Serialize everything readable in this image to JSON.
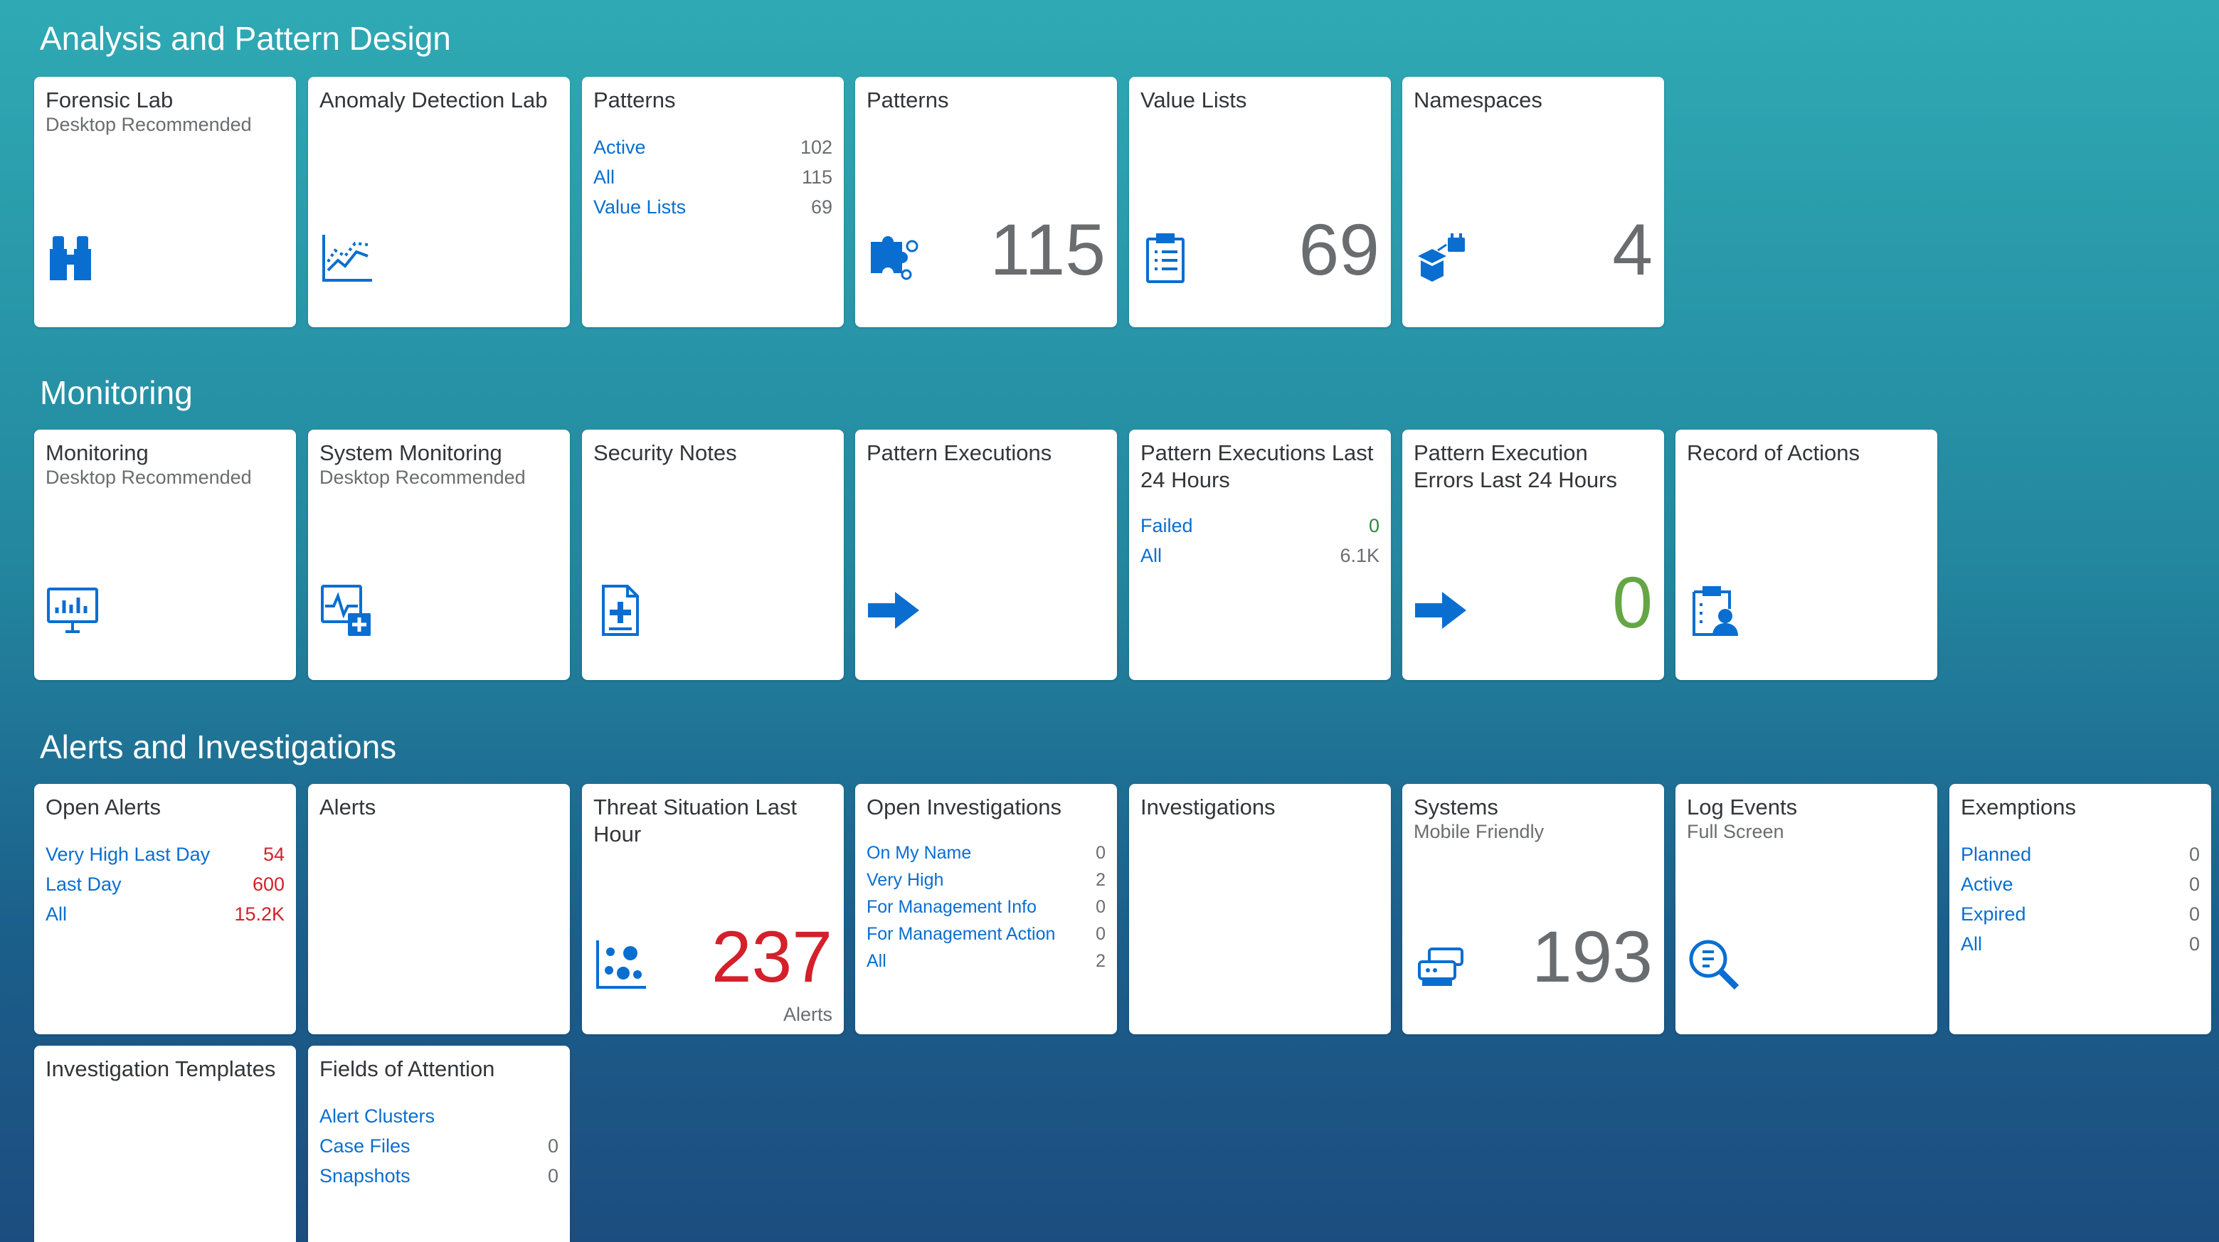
{
  "sections": {
    "analysis": "Analysis and Pattern Design",
    "monitoring": "Monitoring",
    "alerts": "Alerts and Investigations"
  },
  "tiles": {
    "forensic_lab": {
      "title": "Forensic Lab",
      "subtitle": "Desktop Recommended",
      "icon": "binoculars-icon"
    },
    "anomaly_lab": {
      "title": "Anomaly Detection Lab",
      "icon": "line-chart-icon"
    },
    "patterns_list": {
      "title": "Patterns",
      "items": [
        {
          "label": "Active",
          "value": "102"
        },
        {
          "label": "All",
          "value": "115"
        },
        {
          "label": "Value Lists",
          "value": "69"
        }
      ]
    },
    "patterns_kpi": {
      "title": "Patterns",
      "value": "115",
      "icon": "puzzle-icon"
    },
    "value_lists": {
      "title": "Value Lists",
      "value": "69",
      "icon": "clipboard-list-icon"
    },
    "namespaces": {
      "title": "Namespaces",
      "value": "4",
      "icon": "box-icon"
    },
    "monitoring": {
      "title": "Monitoring",
      "subtitle": "Desktop Recommended",
      "icon": "monitor-chart-icon"
    },
    "system_monitoring": {
      "title": "System Monitoring",
      "subtitle": "Desktop Recommended",
      "icon": "health-monitor-icon"
    },
    "security_notes": {
      "title": "Security Notes",
      "icon": "medical-document-icon"
    },
    "pattern_executions": {
      "title": "Pattern Executions",
      "icon": "arrow-right-icon"
    },
    "pattern_exec_24h": {
      "title": "Pattern Executions Last 24 Hours",
      "items": [
        {
          "label": "Failed",
          "value": "0"
        },
        {
          "label": "All",
          "value": "6.1K"
        }
      ]
    },
    "pattern_errors_24h": {
      "title": "Pattern Execution Errors Last 24 Hours",
      "value": "0",
      "icon": "arrow-right-icon"
    },
    "record_actions": {
      "title": "Record of Actions",
      "icon": "clipboard-person-icon"
    },
    "open_alerts": {
      "title": "Open Alerts",
      "items": [
        {
          "label": "Very High Last Day",
          "value": "54"
        },
        {
          "label": "Last Day",
          "value": "600"
        },
        {
          "label": "All",
          "value": "15.2K"
        }
      ]
    },
    "alerts": {
      "title": "Alerts"
    },
    "threat_situation": {
      "title": "Threat Situation Last Hour",
      "value": "237",
      "unit": "Alerts",
      "icon": "scatter-chart-icon"
    },
    "open_investigations": {
      "title": "Open Investigations",
      "items": [
        {
          "label": "On My Name",
          "value": "0"
        },
        {
          "label": "Very High",
          "value": "2"
        },
        {
          "label": "For Management Info",
          "value": "0"
        },
        {
          "label": "For Management Action",
          "value": "0"
        },
        {
          "label": "All",
          "value": "2"
        }
      ]
    },
    "investigations": {
      "title": "Investigations"
    },
    "systems": {
      "title": "Systems",
      "subtitle": "Mobile Friendly",
      "value": "193",
      "icon": "server-icon"
    },
    "log_events": {
      "title": "Log Events",
      "subtitle": "Full Screen",
      "icon": "search-document-icon"
    },
    "exemptions": {
      "title": "Exemptions",
      "items": [
        {
          "label": "Planned",
          "value": "0"
        },
        {
          "label": "Active",
          "value": "0"
        },
        {
          "label": "Expired",
          "value": "0"
        },
        {
          "label": "All",
          "value": "0"
        }
      ]
    },
    "investigation_templates": {
      "title": "Investigation Templates"
    },
    "fields_attention": {
      "title": "Fields of Attention",
      "items": [
        {
          "label": "Alert Clusters",
          "value": ""
        },
        {
          "label": "Case Files",
          "value": "0"
        },
        {
          "label": "Snapshots",
          "value": "0"
        }
      ]
    }
  },
  "colors": {
    "accent": "#0a6ed1",
    "icon": "#0a6ed1",
    "critical": "#d3202a",
    "positive": "#64a644",
    "neutral": "#6a6d70"
  }
}
